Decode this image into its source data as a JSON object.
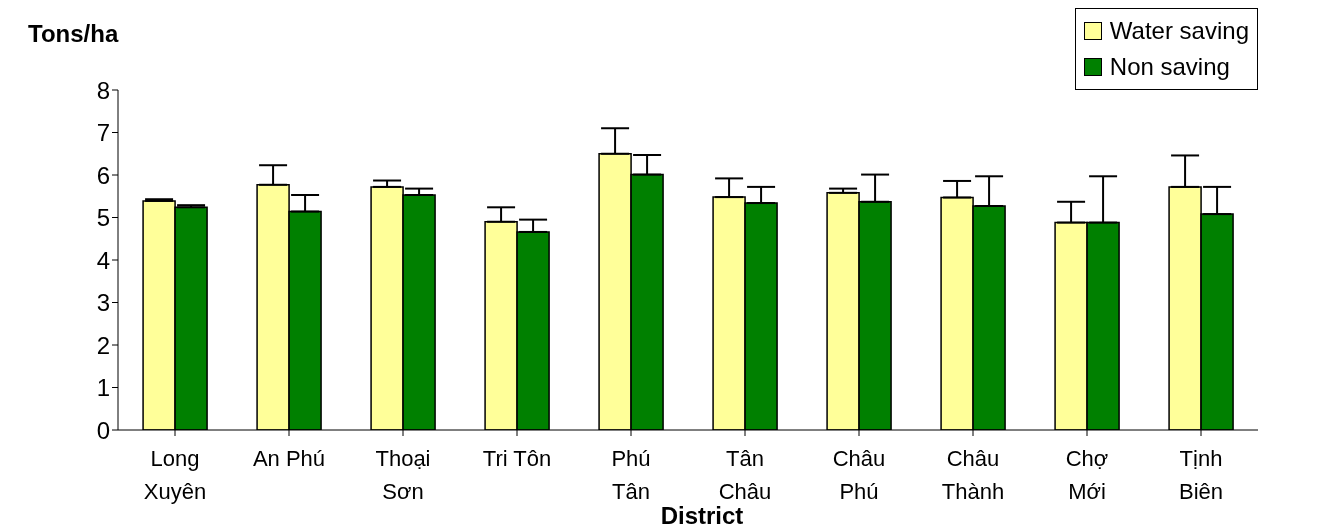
{
  "chart_data": {
    "type": "bar",
    "ylabel": "Tons/ha",
    "xlabel": "District",
    "categories": [
      "Long\nXuyên",
      "An Phú",
      "Thoại\nSơn",
      "Tri Tôn",
      "Phú\nTân",
      "Tân\nChâu",
      "Châu\nPhú",
      "Châu\nThành",
      "Chợ\nMới",
      "Tịnh\nBiên"
    ],
    "series": [
      {
        "name": "Water saving",
        "color": "#ffff99",
        "values": [
          5.39,
          5.77,
          5.72,
          4.9,
          6.5,
          5.48,
          5.58,
          5.47,
          4.88,
          5.72
        ],
        "errors": [
          [
            5.39,
            5.43
          ],
          [
            5.77,
            6.23
          ],
          [
            5.72,
            5.87
          ],
          [
            4.9,
            5.24
          ],
          [
            6.5,
            7.1
          ],
          [
            5.48,
            5.92
          ],
          [
            5.58,
            5.68
          ],
          [
            5.47,
            5.86
          ],
          [
            4.88,
            5.37
          ],
          [
            5.72,
            6.46
          ]
        ]
      },
      {
        "name": "Non saving",
        "color": "#008000",
        "values": [
          5.24,
          5.14,
          5.53,
          4.66,
          6.01,
          5.34,
          5.37,
          5.27,
          4.88,
          5.08
        ],
        "errors": [
          [
            5.24,
            5.29
          ],
          [
            5.14,
            5.53
          ],
          [
            5.53,
            5.68
          ],
          [
            4.66,
            4.95
          ],
          [
            6.01,
            6.47
          ],
          [
            5.34,
            5.72
          ],
          [
            5.37,
            6.01
          ],
          [
            5.27,
            5.97
          ],
          [
            4.88,
            5.97
          ],
          [
            5.08,
            5.72
          ]
        ]
      }
    ],
    "ylim": [
      0,
      8
    ],
    "yticks": [
      0,
      1,
      2,
      3,
      4,
      5,
      6,
      7,
      8
    ],
    "grid": false,
    "legend": "top right"
  }
}
